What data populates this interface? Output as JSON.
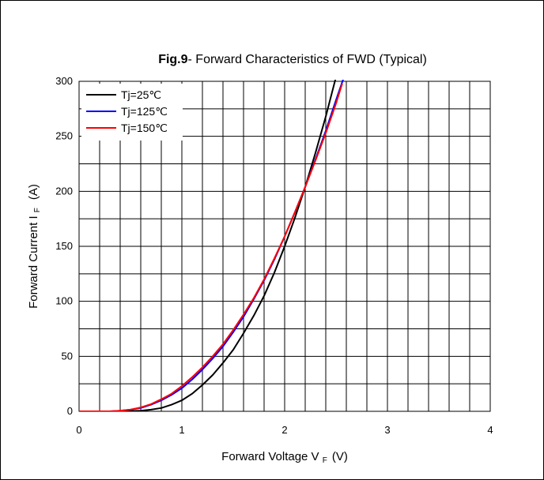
{
  "chart_data": {
    "type": "line",
    "title_bold": "Fig.9",
    "title_rest": "- Forward Characteristics of FWD (Typical)",
    "xlabel_main": "Forward Voltage V",
    "xlabel_sub": "F",
    "xlabel_unit": "(V)",
    "ylabel_main": "Forward Current I",
    "ylabel_sub": "F",
    "ylabel_unit": "(A)",
    "xlim": [
      0,
      4
    ],
    "ylim": [
      0,
      300
    ],
    "x_ticks": [
      0,
      1,
      2,
      3,
      4
    ],
    "y_ticks": [
      0,
      50,
      100,
      150,
      200,
      250,
      300
    ],
    "grid": true,
    "legend_position": "top-left",
    "series": [
      {
        "name": "Tj=25℃",
        "color": "#000000",
        "x": [
          0,
          0.4,
          0.6,
          0.7,
          0.8,
          0.9,
          1.0,
          1.1,
          1.2,
          1.3,
          1.4,
          1.5,
          1.6,
          1.7,
          1.8,
          1.9,
          2.0,
          2.1,
          2.2,
          2.3,
          2.4,
          2.5
        ],
        "y": [
          0,
          0,
          0.5,
          1.5,
          3,
          6,
          10,
          16,
          24,
          33,
          44,
          56,
          71,
          87,
          105,
          126,
          150,
          176,
          204,
          235,
          268,
          304
        ]
      },
      {
        "name": "Tj=125℃",
        "color": "#0000ff",
        "x": [
          0,
          0.3,
          0.4,
          0.5,
          0.6,
          0.7,
          0.8,
          0.9,
          1.0,
          1.1,
          1.2,
          1.3,
          1.4,
          1.5,
          1.6,
          1.7,
          1.8,
          1.9,
          2.0,
          2.1,
          2.2,
          2.3,
          2.4,
          2.5,
          2.57
        ],
        "y": [
          0,
          0,
          0.5,
          1.5,
          3,
          6,
          10,
          15,
          21,
          29,
          38,
          48,
          59,
          72,
          86,
          102,
          119,
          138,
          159,
          181,
          204,
          229,
          255,
          283,
          302
        ]
      },
      {
        "name": "Tj=150℃",
        "color": "#ff0000",
        "x": [
          0,
          0.3,
          0.4,
          0.5,
          0.6,
          0.7,
          0.8,
          0.9,
          1.0,
          1.1,
          1.2,
          1.3,
          1.4,
          1.5,
          1.6,
          1.7,
          1.8,
          1.9,
          2.0,
          2.1,
          2.2,
          2.3,
          2.4,
          2.5,
          2.56
        ],
        "y": [
          0,
          0,
          0.5,
          1.5,
          3.5,
          6.5,
          11,
          16,
          23,
          31,
          40,
          50,
          61,
          74,
          88,
          103,
          120,
          139,
          159,
          181,
          204,
          228,
          253,
          280,
          298
        ]
      }
    ]
  }
}
